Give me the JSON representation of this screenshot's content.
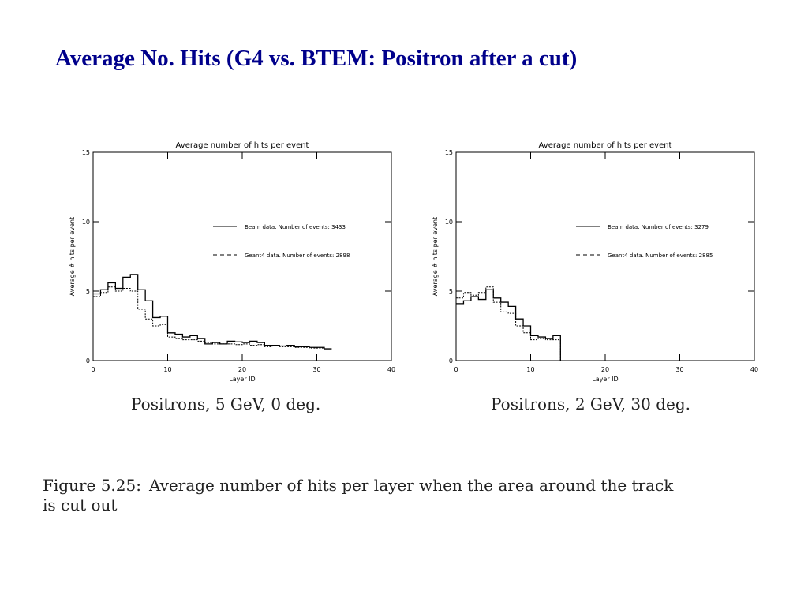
{
  "slide_title": "Average No. Hits (G4 vs. BTEM: Positron after a cut)",
  "figure_caption": {
    "label": "Figure 5.25:",
    "text": "Average number of hits per layer when the area around the track is cut out"
  },
  "chart_data": [
    {
      "type": "line",
      "step": true,
      "title": "Average number of hits per event",
      "xlabel": "Layer ID",
      "ylabel": "Average # hits per event",
      "xlim": [
        0,
        40
      ],
      "ylim": [
        0,
        15
      ],
      "xticks": [
        0,
        10,
        20,
        30,
        40
      ],
      "yticks": [
        0,
        5,
        10,
        15
      ],
      "legend_position": "right",
      "caption": "Positrons, 5 GeV, 0 deg.",
      "series": [
        {
          "name": "Beam data. Number of events: 3433",
          "style": "solid",
          "x": [
            0,
            1,
            2,
            3,
            4,
            5,
            6,
            7,
            8,
            9,
            10,
            11,
            12,
            13,
            14,
            15,
            16,
            17,
            18,
            19,
            20,
            21,
            22,
            23,
            24,
            25,
            26,
            27,
            28,
            29,
            30,
            31
          ],
          "y": [
            4.8,
            5.1,
            5.6,
            5.2,
            6.0,
            6.2,
            5.1,
            4.3,
            3.1,
            3.2,
            2.0,
            1.9,
            1.7,
            1.8,
            1.6,
            1.2,
            1.3,
            1.2,
            1.4,
            1.35,
            1.3,
            1.4,
            1.3,
            1.1,
            1.1,
            1.05,
            1.1,
            1.0,
            1.0,
            0.95,
            0.95,
            0.85
          ]
        },
        {
          "name": "Geant4 data. Number of events: 2898",
          "style": "dashed",
          "x": [
            0,
            1,
            2,
            3,
            4,
            5,
            6,
            7,
            8,
            9,
            10,
            11,
            12,
            13,
            14,
            15,
            16,
            17,
            18,
            19,
            20,
            21,
            22,
            23,
            24,
            25,
            26,
            27,
            28,
            29,
            30,
            31
          ],
          "y": [
            4.6,
            4.9,
            5.3,
            5.0,
            5.2,
            5.0,
            3.7,
            3.0,
            2.5,
            2.6,
            1.7,
            1.6,
            1.5,
            1.5,
            1.4,
            1.3,
            1.2,
            1.2,
            1.2,
            1.15,
            1.2,
            1.1,
            1.15,
            1.0,
            1.05,
            1.0,
            1.0,
            0.95,
            0.95,
            0.9,
            0.9,
            0.85
          ]
        }
      ]
    },
    {
      "type": "line",
      "step": true,
      "title": "Average number of hits per event",
      "xlabel": "Layer ID",
      "ylabel": "Average # hits per event",
      "xlim": [
        0,
        40
      ],
      "ylim": [
        0,
        15
      ],
      "xticks": [
        0,
        10,
        20,
        30,
        40
      ],
      "yticks": [
        0,
        5,
        10,
        15
      ],
      "legend_position": "right",
      "caption": "Positrons, 2 GeV, 30 deg.",
      "series": [
        {
          "name": "Beam data. Number of events: 3279",
          "style": "solid",
          "x": [
            0,
            1,
            2,
            3,
            4,
            5,
            6,
            7,
            8,
            9,
            10,
            11,
            12,
            13
          ],
          "y": [
            4.1,
            4.3,
            4.6,
            4.4,
            5.1,
            4.5,
            4.2,
            3.9,
            3.0,
            2.5,
            1.8,
            1.7,
            1.6,
            1.8
          ]
        },
        {
          "name": "Geant4 data. Number of events: 2885",
          "style": "dashed",
          "x": [
            0,
            1,
            2,
            3,
            4,
            5,
            6,
            7,
            8,
            9,
            10,
            11,
            12,
            13
          ],
          "y": [
            4.5,
            4.9,
            4.7,
            4.9,
            5.3,
            4.2,
            3.5,
            3.4,
            2.5,
            2.0,
            1.5,
            1.6,
            1.5,
            1.5
          ]
        }
      ]
    }
  ]
}
